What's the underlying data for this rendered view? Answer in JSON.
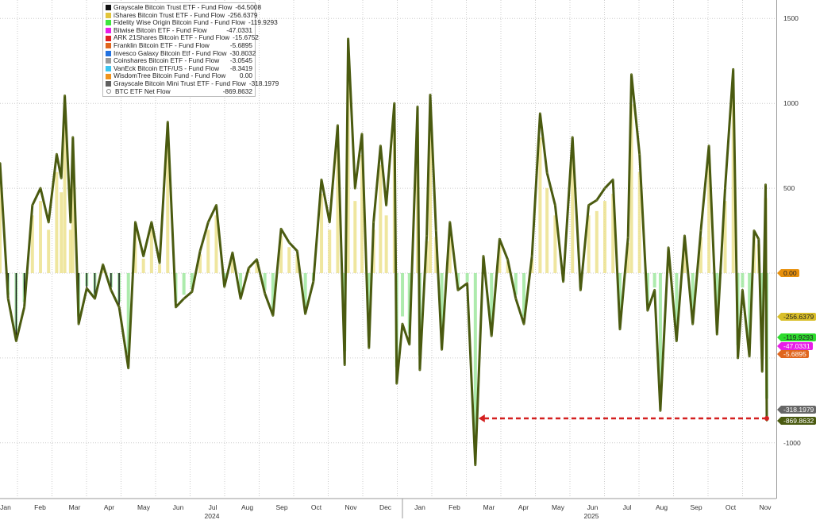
{
  "chart_data": {
    "type": "bar+line",
    "ylim": [
      -1300,
      1650
    ],
    "yticks": [
      1500,
      1000,
      500,
      -1000
    ],
    "grid": true,
    "legend_placement": "top-left",
    "x_month_labels": [
      "Jan",
      "Feb",
      "Mar",
      "Apr",
      "May",
      "Jun",
      "Jul",
      "Aug",
      "Sep",
      "Oct",
      "Nov",
      "Dec",
      "Jan",
      "Feb",
      "Mar",
      "Apr",
      "May",
      "Jun",
      "Jul",
      "Aug",
      "Sep",
      "Oct",
      "Nov"
    ],
    "x_year_labels": [
      "2024",
      "2025"
    ],
    "legend": [
      {
        "name": "Grayscale Bitcoin Trust ETF - Fund Flow",
        "value": "-64.5008",
        "color": "#111111"
      },
      {
        "name": "iShares Bitcoin Trust ETF - Fund Flow",
        "value": "-256.6379",
        "color": "#e2c53a"
      },
      {
        "name": "Fidelity Wise Origin Bitcoin Fund - Fund Flow",
        "value": "-119.9293",
        "color": "#3ee63e"
      },
      {
        "name": "Bitwise Bitcoin ETF - Fund Flow",
        "value": "-47.0331",
        "color": "#e81ee8"
      },
      {
        "name": "ARK 21Shares Bitcoin ETF - Fund Flow",
        "value": "-15.6752",
        "color": "#e02020"
      },
      {
        "name": "Franklin Bitcoin ETF - Fund Flow",
        "value": "-5.6895",
        "color": "#e0661e"
      },
      {
        "name": "Invesco Galaxy Bitcoin Etf - Fund Flow",
        "value": "-30.8032",
        "color": "#2272e0"
      },
      {
        "name": "Coinshares Bitcoin ETF - Fund Flow",
        "value": "-3.0545",
        "color": "#9a9a9a"
      },
      {
        "name": "VanEck Bitcoin ETF/US - Fund Flow",
        "value": "-8.3419",
        "color": "#3cc4f0"
      },
      {
        "name": "WisdomTree Bitcoin Fund - Fund Flow",
        "value": "0.00",
        "color": "#f0941e"
      },
      {
        "name": "Grayscale Bitcoin Mini Trust ETF - Fund Flow",
        "value": "-318.1979",
        "color": "#606060"
      },
      {
        "name": "BTC ETF Net Flow",
        "value": "-869.8632",
        "color": "#4a5a10"
      }
    ],
    "last_value_tags": [
      {
        "value": 0.0,
        "label": "0.00",
        "color": "#e8900c"
      },
      {
        "value": -256.6379,
        "label": "-256.6379",
        "color": "#d9bf2a"
      },
      {
        "value": -119.9293,
        "label": "-119.9293",
        "color": "#2edc2e"
      },
      {
        "value": -47.0331,
        "label": "-47.0331",
        "color": "#e81ee8"
      },
      {
        "value": -5.6895,
        "label": "-5.6895",
        "color": "#e0661e"
      },
      {
        "value": -318.1979,
        "label": "-318.1979",
        "color": "#666666"
      },
      {
        "value": -869.8632,
        "label": "-869.8632",
        "color": "#4a5a10"
      }
    ],
    "annotation": {
      "type": "dashed-arrow",
      "color": "#d42020",
      "from_date": "2025-11-04",
      "to_date": "2025-02-25",
      "value": -869.8632
    },
    "net_flow": [
      [
        "2024-01-11",
        650
      ],
      [
        "2024-01-18",
        -150
      ],
      [
        "2024-01-25",
        -400
      ],
      [
        "2024-02-01",
        -200
      ],
      [
        "2024-02-08",
        400
      ],
      [
        "2024-02-15",
        500
      ],
      [
        "2024-02-22",
        300
      ],
      [
        "2024-02-29",
        700
      ],
      [
        "2024-03-04",
        560
      ],
      [
        "2024-03-07",
        1045
      ],
      [
        "2024-03-12",
        300
      ],
      [
        "2024-03-14",
        800
      ],
      [
        "2024-03-19",
        -300
      ],
      [
        "2024-03-26",
        -90
      ],
      [
        "2024-04-02",
        -150
      ],
      [
        "2024-04-09",
        50
      ],
      [
        "2024-04-16",
        -100
      ],
      [
        "2024-04-23",
        -200
      ],
      [
        "2024-05-01",
        -560
      ],
      [
        "2024-05-07",
        300
      ],
      [
        "2024-05-14",
        100
      ],
      [
        "2024-05-21",
        300
      ],
      [
        "2024-05-28",
        60
      ],
      [
        "2024-06-04",
        890
      ],
      [
        "2024-06-11",
        -200
      ],
      [
        "2024-06-18",
        -150
      ],
      [
        "2024-06-25",
        -110
      ],
      [
        "2024-07-02",
        130
      ],
      [
        "2024-07-09",
        300
      ],
      [
        "2024-07-16",
        400
      ],
      [
        "2024-07-23",
        -80
      ],
      [
        "2024-07-30",
        120
      ],
      [
        "2024-08-06",
        -150
      ],
      [
        "2024-08-13",
        30
      ],
      [
        "2024-08-20",
        80
      ],
      [
        "2024-08-27",
        -120
      ],
      [
        "2024-09-03",
        -250
      ],
      [
        "2024-09-10",
        260
      ],
      [
        "2024-09-17",
        180
      ],
      [
        "2024-09-24",
        130
      ],
      [
        "2024-10-01",
        -240
      ],
      [
        "2024-10-08",
        -50
      ],
      [
        "2024-10-15",
        550
      ],
      [
        "2024-10-22",
        300
      ],
      [
        "2024-10-29",
        870
      ],
      [
        "2024-11-04",
        -540
      ],
      [
        "2024-11-07",
        1380
      ],
      [
        "2024-11-13",
        500
      ],
      [
        "2024-11-19",
        820
      ],
      [
        "2024-11-25",
        -440
      ],
      [
        "2024-11-29",
        300
      ],
      [
        "2024-12-05",
        750
      ],
      [
        "2024-12-10",
        400
      ],
      [
        "2024-12-17",
        1000
      ],
      [
        "2024-12-19",
        -650
      ],
      [
        "2024-12-24",
        -300
      ],
      [
        "2024-12-30",
        -420
      ],
      [
        "2025-01-06",
        980
      ],
      [
        "2025-01-08",
        -570
      ],
      [
        "2025-01-14",
        220
      ],
      [
        "2025-01-17",
        1050
      ],
      [
        "2025-01-22",
        250
      ],
      [
        "2025-01-27",
        -450
      ],
      [
        "2025-02-03",
        300
      ],
      [
        "2025-02-10",
        -100
      ],
      [
        "2025-02-18",
        -60
      ],
      [
        "2025-02-25",
        -1130
      ],
      [
        "2025-03-04",
        100
      ],
      [
        "2025-03-11",
        -370
      ],
      [
        "2025-03-18",
        200
      ],
      [
        "2025-03-25",
        80
      ],
      [
        "2025-04-01",
        -150
      ],
      [
        "2025-04-08",
        -300
      ],
      [
        "2025-04-15",
        100
      ],
      [
        "2025-04-22",
        940
      ],
      [
        "2025-04-28",
        590
      ],
      [
        "2025-05-05",
        400
      ],
      [
        "2025-05-12",
        -50
      ],
      [
        "2025-05-20",
        800
      ],
      [
        "2025-05-27",
        -100
      ],
      [
        "2025-06-03",
        400
      ],
      [
        "2025-06-10",
        430
      ],
      [
        "2025-06-17",
        500
      ],
      [
        "2025-06-24",
        550
      ],
      [
        "2025-06-30",
        -330
      ],
      [
        "2025-07-07",
        210
      ],
      [
        "2025-07-10",
        1170
      ],
      [
        "2025-07-17",
        700
      ],
      [
        "2025-07-24",
        -220
      ],
      [
        "2025-07-30",
        -100
      ],
      [
        "2025-08-04",
        -810
      ],
      [
        "2025-08-11",
        150
      ],
      [
        "2025-08-18",
        -400
      ],
      [
        "2025-08-25",
        220
      ],
      [
        "2025-09-01",
        -300
      ],
      [
        "2025-09-08",
        250
      ],
      [
        "2025-09-15",
        750
      ],
      [
        "2025-09-22",
        -360
      ],
      [
        "2025-09-29",
        500
      ],
      [
        "2025-10-06",
        1200
      ],
      [
        "2025-10-10",
        -500
      ],
      [
        "2025-10-14",
        -100
      ],
      [
        "2025-10-20",
        -490
      ],
      [
        "2025-10-24",
        250
      ],
      [
        "2025-10-28",
        200
      ],
      [
        "2025-10-31",
        -580
      ],
      [
        "2025-11-03",
        520
      ],
      [
        "2025-11-04",
        -869.8632
      ]
    ]
  }
}
